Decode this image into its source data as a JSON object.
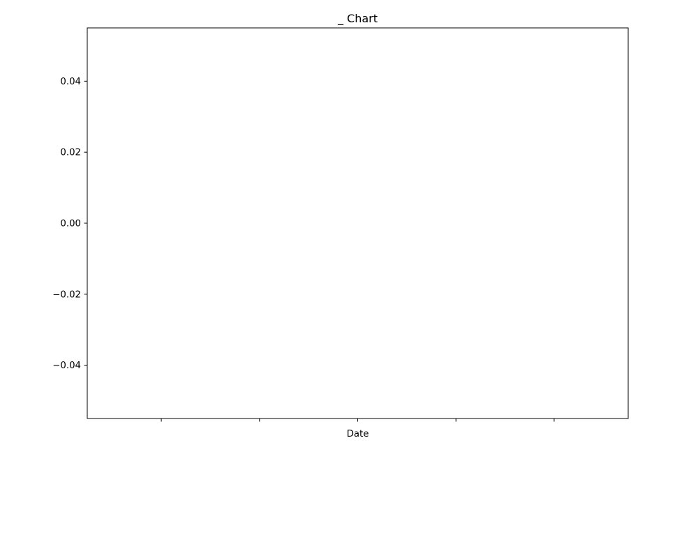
{
  "chart_data": {
    "type": "line",
    "title": "_ Chart",
    "xlabel": "Date",
    "ylabel": "",
    "x": [],
    "series": [],
    "ylim": [
      -0.055,
      0.055
    ],
    "yticks": [
      -0.04,
      -0.02,
      0.0,
      0.02,
      0.04
    ],
    "ytick_labels": [
      "−0.04",
      "−0.02",
      "0.00",
      "0.02",
      "0.04"
    ],
    "xtick_count": 5,
    "xtick_labels": [
      "",
      "",
      "",
      "",
      ""
    ],
    "grid": false,
    "legend": "none",
    "colors": {
      "axes": "#000000",
      "background": "#ffffff"
    }
  }
}
